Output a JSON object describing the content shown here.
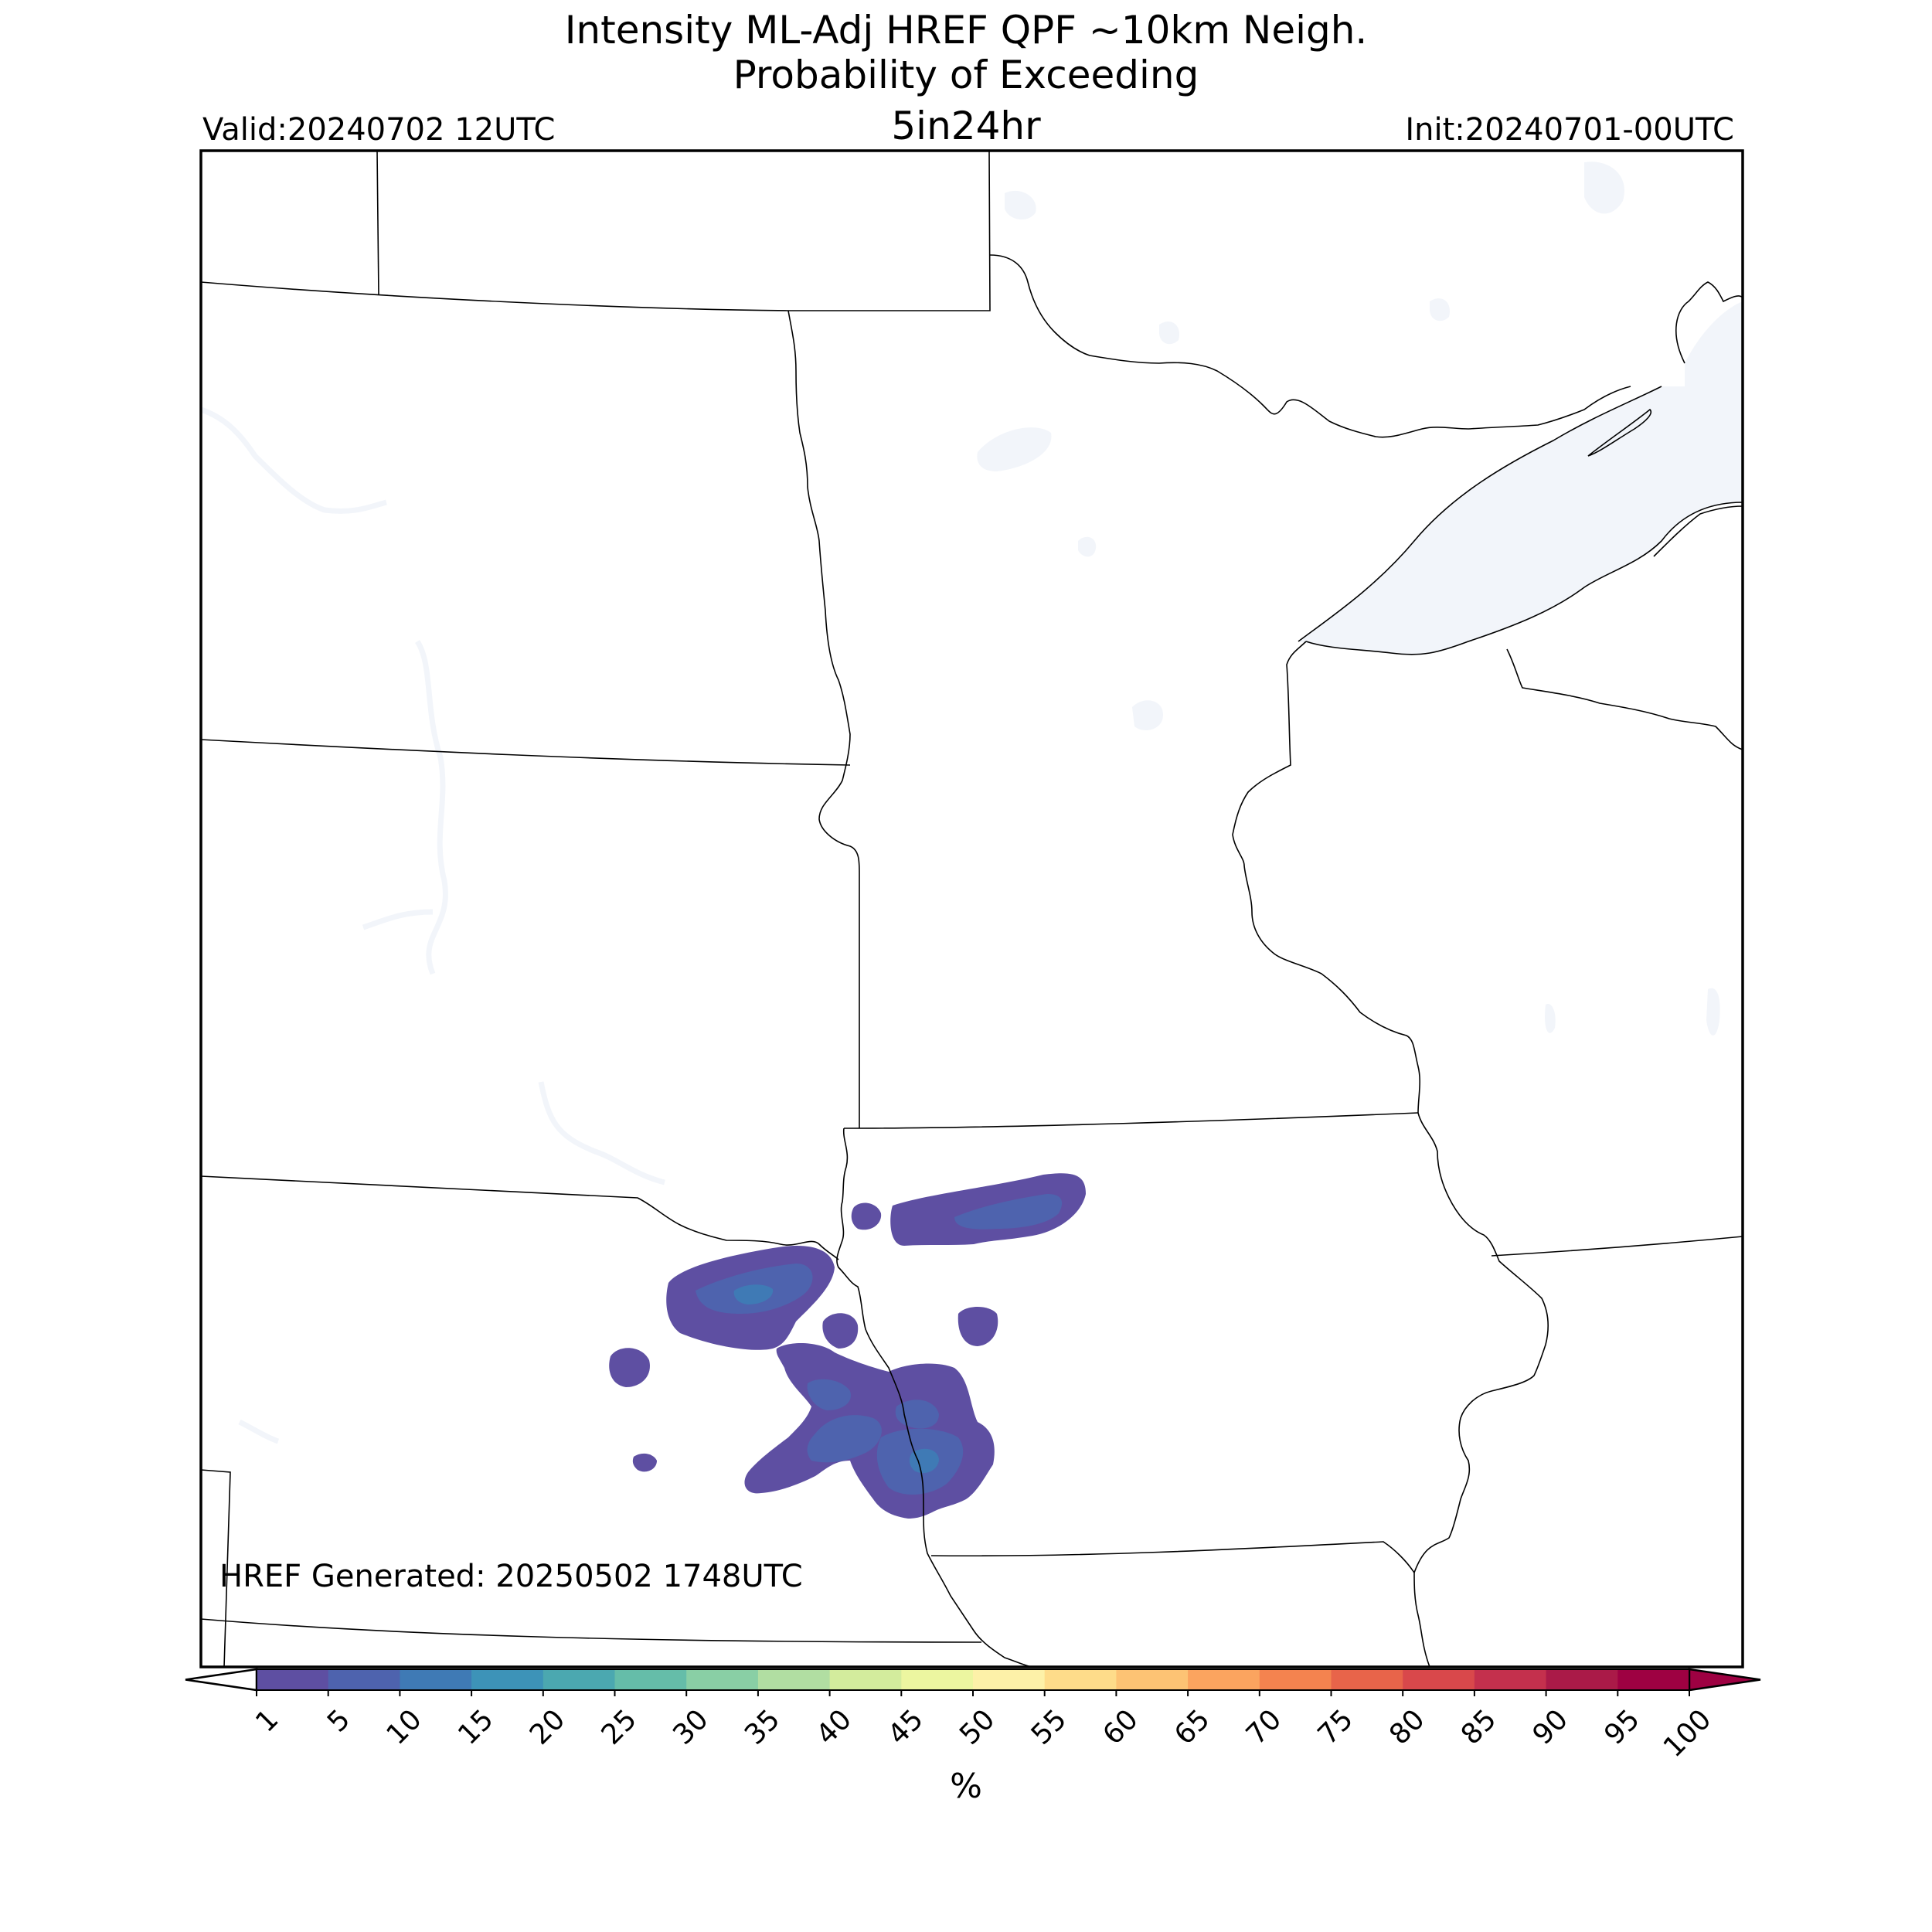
{
  "title": {
    "line1": "Intensity ML-Adj HREF QPF ~10km Neigh.",
    "line2": "Probability of Exceeding",
    "line3": "5in24hr"
  },
  "valid_label": "Valid:20240702 12UTC",
  "init_label": "Init:20240701-00UTC",
  "generated_label": "HREF Generated: 20250502 1748UTC",
  "colorbar": {
    "unit": "%",
    "ticks": [
      "1",
      "5",
      "10",
      "15",
      "20",
      "25",
      "30",
      "35",
      "40",
      "45",
      "50",
      "55",
      "60",
      "65",
      "70",
      "75",
      "80",
      "85",
      "90",
      "95",
      "100"
    ],
    "colors": [
      "#5e4fa2",
      "#4e63ae",
      "#3f7ab5",
      "#3d93b8",
      "#4ba8b0",
      "#65bda9",
      "#89cfa5",
      "#b1dea2",
      "#d3ec9d",
      "#ecf6a0",
      "#fdf1a8",
      "#fedc8a",
      "#fdc374",
      "#fba45f",
      "#f4834f",
      "#e8644a",
      "#d9484b",
      "#c4304d",
      "#aa1a48",
      "#9e0142"
    ]
  },
  "water_color": "#f2f5fa",
  "probability_colors": {
    "p1": "#5e4fa2",
    "p5": "#4e63ae",
    "p10": "#3f7ab5"
  }
}
